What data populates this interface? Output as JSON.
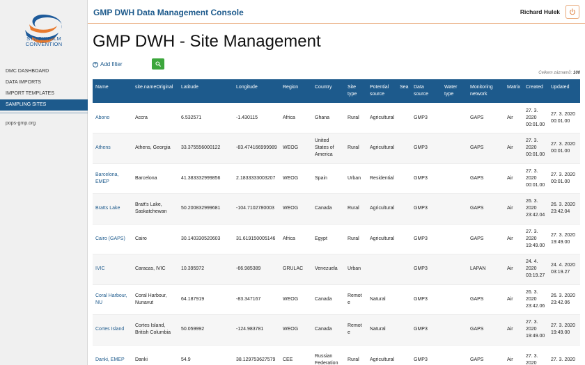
{
  "sidebar": {
    "logo_text_1": "STOCKHOLM",
    "logo_text_2": "CONVENTION",
    "items": [
      {
        "label": "DMC DASHBOARD",
        "active": false
      },
      {
        "label": "DATA IMPORTS",
        "active": false
      },
      {
        "label": "IMPORT TEMPLATES",
        "active": false
      },
      {
        "label": "SAMPLING SITES",
        "active": true
      }
    ],
    "site_link": "pops-gmp.org"
  },
  "header": {
    "title": "GMP DWH Data Management Console",
    "user": "Richard Hulek",
    "power_icon": "power-icon"
  },
  "main": {
    "page_title": "GMP DWH - Site Management",
    "add_filter": "Add filter",
    "total_label": "Celkem záznamů:",
    "total_count": "100"
  },
  "table": {
    "columns": [
      "Name",
      "site.nameOriginal",
      "Latitude",
      "Longitude",
      "Region",
      "Country",
      "Site type",
      "Potential source",
      "Sea",
      "Data source",
      "Water type",
      "Monitoring network",
      "Matrix",
      "Created",
      "Updated"
    ],
    "rows": [
      {
        "name": "Abono",
        "original": "Accra",
        "lat": "6.532571",
        "lon": "-1.430115",
        "region": "Africa",
        "country": "Ghana",
        "site_type": "Rural",
        "source": "Agricultural",
        "sea": "",
        "data_source": "GMP3",
        "water": "",
        "network": "GAPS",
        "matrix": "Air",
        "created": "27. 3. 2020 00:01.00",
        "updated": "27. 3. 2020 00:01.00"
      },
      {
        "name": "Athens",
        "original": "Athens, Georgia",
        "lat": "33.375556000122",
        "lon": "-83.474166999989",
        "region": "WEOG",
        "country": "United States of America",
        "site_type": "Rural",
        "source": "Agricultural",
        "sea": "",
        "data_source": "GMP3",
        "water": "",
        "network": "GAPS",
        "matrix": "Air",
        "created": "27. 3. 2020 00:01.00",
        "updated": "27. 3. 2020 00:01.00"
      },
      {
        "name": "Barcelona, EMEP",
        "original": "Barcelona",
        "lat": "41.383332999856",
        "lon": "2.1833333003207",
        "region": "WEOG",
        "country": "Spain",
        "site_type": "Urban",
        "source": "Residential",
        "sea": "",
        "data_source": "GMP3",
        "water": "",
        "network": "GAPS",
        "matrix": "Air",
        "created": "27. 3. 2020 00:01.00",
        "updated": "27. 3. 2020 00:01.00"
      },
      {
        "name": "Bratts Lake",
        "original": "Bratt's Lake, Saskatchewan",
        "lat": "50.200832999681",
        "lon": "-104.7102780003",
        "region": "WEOG",
        "country": "Canada",
        "site_type": "Rural",
        "source": "Agricultural",
        "sea": "",
        "data_source": "GMP3",
        "water": "",
        "network": "GAPS",
        "matrix": "Air",
        "created": "26. 3. 2020 23:42.04",
        "updated": "26. 3. 2020 23:42.04"
      },
      {
        "name": "Cairo (GAPS)",
        "original": "Cairo",
        "lat": "30.140330520603",
        "lon": "31.619150005146",
        "region": "Africa",
        "country": "Egypt",
        "site_type": "Rural",
        "source": "Agricultural",
        "sea": "",
        "data_source": "GMP3",
        "water": "",
        "network": "GAPS",
        "matrix": "Air",
        "created": "27. 3. 2020 19:49.00",
        "updated": "27. 3. 2020 19:49.00"
      },
      {
        "name": "IVIC",
        "original": "Caracas, IVIC",
        "lat": "10.395972",
        "lon": "-66.985389",
        "region": "GRULAC",
        "country": "Venezuela",
        "site_type": "Urban",
        "source": "",
        "sea": "",
        "data_source": "GMP3",
        "water": "",
        "network": "LAPAN",
        "matrix": "Air",
        "created": "24. 4. 2020 03:19.27",
        "updated": "24. 4. 2020 03:19.27"
      },
      {
        "name": "Coral Harbour, NU",
        "original": "Coral Harbour, Nunavut",
        "lat": "64.187919",
        "lon": "-83.347167",
        "region": "WEOG",
        "country": "Canada",
        "site_type": "Remote",
        "source": "Natural",
        "sea": "",
        "data_source": "GMP3",
        "water": "",
        "network": "GAPS",
        "matrix": "Air",
        "created": "26. 3. 2020 23:42.06",
        "updated": "26. 3. 2020 23:42.06"
      },
      {
        "name": "Cortes Island",
        "original": "Cortes Island, British Columbia",
        "lat": "50.059992",
        "lon": "-124.983781",
        "region": "WEOG",
        "country": "Canada",
        "site_type": "Remote",
        "source": "Natural",
        "sea": "",
        "data_source": "GMP3",
        "water": "",
        "network": "GAPS",
        "matrix": "Air",
        "created": "27. 3. 2020 19:49.00",
        "updated": "27. 3. 2020 19:49.00"
      },
      {
        "name": "Danki, EMEP",
        "original": "Danki",
        "lat": "54.9",
        "lon": "38.129753627579",
        "region": "CEE",
        "country": "Russian Federation",
        "site_type": "Rural",
        "source": "Agricultural",
        "sea": "",
        "data_source": "GMP3",
        "water": "",
        "network": "GAPS",
        "matrix": "Air",
        "created": "27. 3. 2020",
        "updated": "27. 3. 2020"
      }
    ]
  },
  "colors": {
    "primary": "#1d5a8c",
    "accent": "#e8a676",
    "search_button": "#3ca63c"
  }
}
